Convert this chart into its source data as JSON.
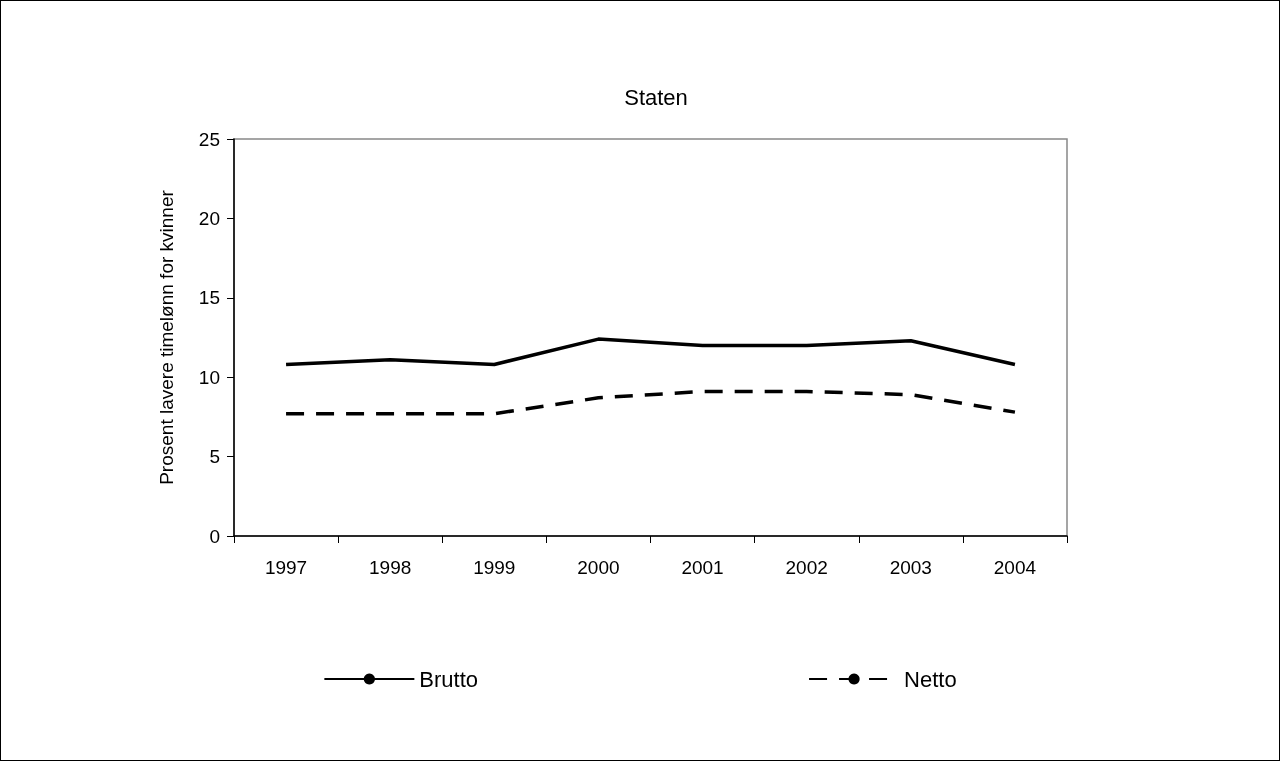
{
  "chart_data": {
    "type": "line",
    "title": "Staten",
    "ylabel": "Prosent lavere timelønn for kvinner",
    "categories": [
      "1997",
      "1998",
      "1999",
      "2000",
      "2001",
      "2002",
      "2003",
      "2004"
    ],
    "series": [
      {
        "name": "Brutto",
        "color": "#000000",
        "line_style": "solid",
        "values": [
          10.8,
          11.1,
          10.8,
          12.4,
          12.0,
          12.0,
          12.3,
          10.8
        ]
      },
      {
        "name": "Netto",
        "color": "#000000",
        "line_style": "dashed",
        "values": [
          7.7,
          7.7,
          7.7,
          8.7,
          9.1,
          9.1,
          8.9,
          7.8
        ]
      }
    ],
    "ylim": [
      0,
      25
    ],
    "yticks": [
      0,
      5,
      10,
      15,
      20,
      25
    ],
    "grid": false,
    "legend": "bottom",
    "marker": "none"
  }
}
